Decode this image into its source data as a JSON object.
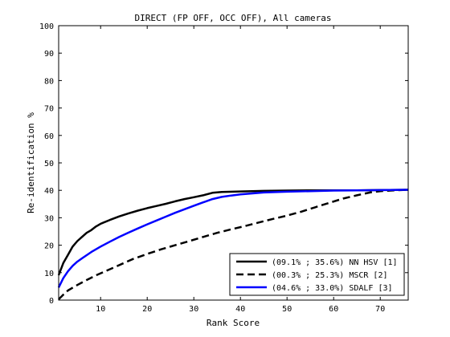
{
  "chart_data": {
    "type": "line",
    "title": "DIRECT (FP OFF, OCC OFF), All cameras",
    "xlabel": "Rank Score",
    "ylabel": "Re-identification %",
    "xlim": [
      1,
      76
    ],
    "ylim": [
      0,
      100
    ],
    "x_ticks": [
      10,
      20,
      30,
      40,
      50,
      60,
      70
    ],
    "y_ticks": [
      0,
      10,
      20,
      30,
      40,
      50,
      60,
      70,
      80,
      90,
      100
    ],
    "grid": false,
    "legend_position": "bottom-right",
    "series": [
      {
        "name": "(09.1% ; 35.6%) NN HSV [1]",
        "color": "#000000",
        "dash": "solid",
        "x": [
          1,
          2,
          3,
          4,
          5,
          6,
          7,
          8,
          9,
          10,
          12,
          14,
          16,
          18,
          20,
          22,
          24,
          26,
          28,
          30,
          32,
          34,
          36,
          40,
          45,
          50,
          55,
          60,
          65,
          70,
          76
        ],
        "y": [
          9.1,
          13.5,
          16.5,
          19.5,
          21.5,
          23,
          24.5,
          25.5,
          26.8,
          27.8,
          29.2,
          30.5,
          31.6,
          32.6,
          33.5,
          34.3,
          35.1,
          36,
          36.8,
          37.5,
          38.2,
          39.1,
          39.4,
          39.6,
          39.8,
          39.9,
          40,
          40,
          40,
          40.1,
          40.2
        ]
      },
      {
        "name": "(00.3% ; 25.3%) MSCR [2]",
        "color": "#000000",
        "dash": "dashed",
        "x": [
          1,
          2,
          3,
          5,
          7,
          9,
          11,
          13,
          15,
          17,
          20,
          23,
          26,
          29,
          32,
          35,
          38,
          41,
          44,
          47,
          50,
          53,
          56,
          59,
          62,
          65,
          68,
          70,
          73,
          76
        ],
        "y": [
          0.3,
          2,
          3.5,
          5.5,
          7.3,
          9,
          10.5,
          12,
          13.5,
          15,
          16.8,
          18.5,
          20,
          21.5,
          23,
          24.5,
          25.8,
          27,
          28.3,
          29.6,
          30.8,
          32.2,
          33.8,
          35.4,
          37,
          38.2,
          39.3,
          39.7,
          40,
          40.2
        ]
      },
      {
        "name": "(04.6% ; 33.0%) SDALF [3]",
        "color": "#0000ff",
        "dash": "solid",
        "x": [
          1,
          2,
          3,
          4,
          5,
          6,
          8,
          10,
          12,
          14,
          16,
          18,
          20,
          22,
          24,
          26,
          28,
          30,
          32,
          34,
          36,
          38,
          40,
          45,
          50,
          55,
          60,
          65,
          70,
          76
        ],
        "y": [
          4.6,
          8,
          10.5,
          12.5,
          14,
          15.2,
          17.5,
          19.5,
          21.3,
          23,
          24.6,
          26.1,
          27.6,
          29,
          30.4,
          31.8,
          33.1,
          34.4,
          35.6,
          36.8,
          37.6,
          38.1,
          38.5,
          39.2,
          39.5,
          39.7,
          39.9,
          40,
          40.1,
          40.2
        ]
      }
    ]
  }
}
